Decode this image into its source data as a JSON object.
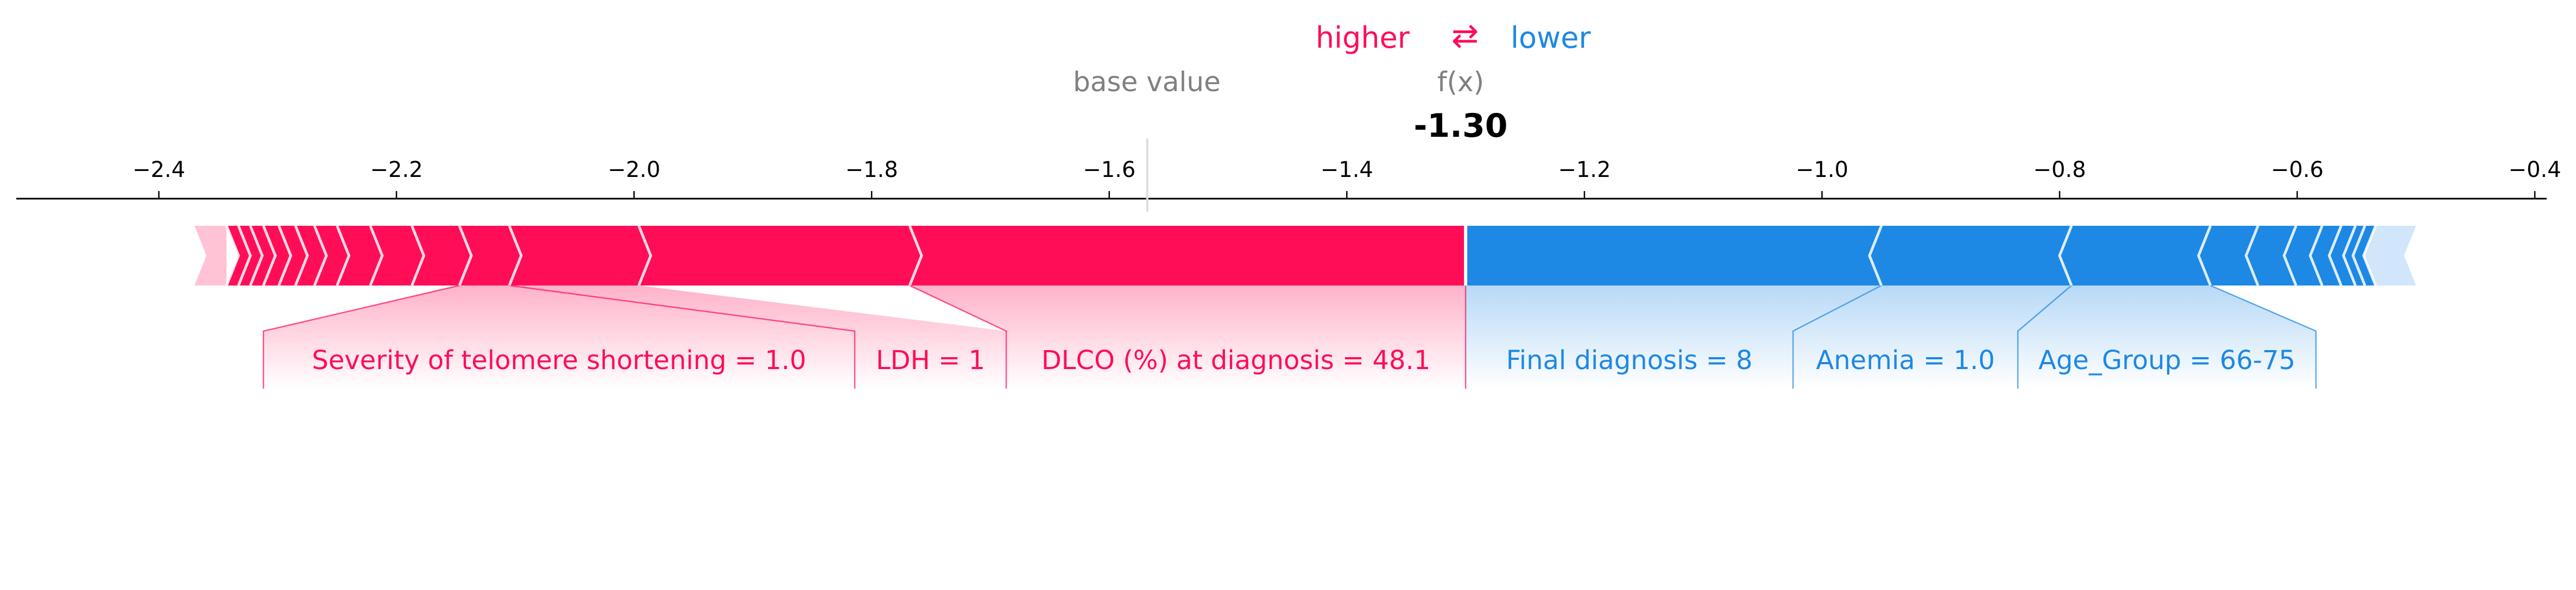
{
  "header": {
    "higher_label": "higher",
    "arrows_glyph": "⇄",
    "lower_label": "lower",
    "base_value_label": "base value",
    "fx_label": "f(x)",
    "fx_value_text": "-1.30"
  },
  "colors": {
    "positive": "#ff0d57",
    "negative": "#1e88e5",
    "positive_light": "#ffc3d5",
    "negative_light": "#d1e6fa",
    "axis": "#000000",
    "muted_text": "#808080"
  },
  "chart_data": {
    "type": "force",
    "xlim": [
      -2.52,
      -0.39
    ],
    "ticks": [
      {
        "value": -2.4,
        "label": "−2.4"
      },
      {
        "value": -2.2,
        "label": "−2.2"
      },
      {
        "value": -2.0,
        "label": "−2.0"
      },
      {
        "value": -1.8,
        "label": "−1.8"
      },
      {
        "value": -1.6,
        "label": "−1.6"
      },
      {
        "value": -1.4,
        "label": "−1.4"
      },
      {
        "value": -1.2,
        "label": "−1.2"
      },
      {
        "value": -1.0,
        "label": "−1.0"
      },
      {
        "value": -0.8,
        "label": "−0.8"
      },
      {
        "value": -0.6,
        "label": "−0.6"
      },
      {
        "value": -0.4,
        "label": "−0.4"
      }
    ],
    "base_value": -1.568,
    "fx": -1.3,
    "bar_extent": [
      -2.37,
      -0.5
    ],
    "positive_boundaries": [
      -2.343,
      -2.333,
      -2.323,
      -2.312,
      -2.299,
      -2.285,
      -2.269,
      -2.25,
      -2.222,
      -2.187,
      -2.147,
      -2.105,
      -1.996,
      -1.768
    ],
    "negative_boundaries": [
      -0.95,
      -0.79,
      -0.673,
      -0.633,
      -0.601,
      -0.579,
      -0.563,
      -0.551,
      -0.543,
      -0.534
    ],
    "positive_features": [
      {
        "label": "Severity of telomere shortening = 1.0",
        "from": -2.147,
        "to": -2.105
      },
      {
        "label": "LDH = 1",
        "from": -2.105,
        "to": -1.996
      },
      {
        "label": "DLCO (%) at diagnosis = 48.1",
        "from": -1.768,
        "to": -1.3
      }
    ],
    "negative_features": [
      {
        "label": "Final diagnosis = 8",
        "from": -1.3,
        "to": -0.95
      },
      {
        "label": "Anemia = 1.0",
        "from": -0.95,
        "to": -0.79
      },
      {
        "label": "Age_Group = 66-75",
        "from": -0.79,
        "to": -0.673
      }
    ]
  }
}
